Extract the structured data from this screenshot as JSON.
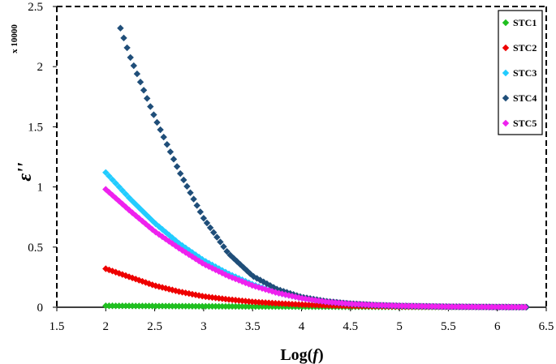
{
  "chart_data": {
    "type": "scatter",
    "xlabel_prefix": "Log(",
    "xlabel_var": "f",
    "xlabel_suffix": ")",
    "ylabel": "ε''",
    "multiplier_label": "x 10000",
    "xlim": [
      1.5,
      6.5
    ],
    "ylim": [
      0,
      2.5
    ],
    "x_ticks": [
      1.5,
      2,
      2.5,
      3,
      3.5,
      4,
      4.5,
      5,
      5.5,
      6,
      6.5
    ],
    "x_tick_labels": [
      "1.5",
      "2",
      "2.5",
      "3",
      "3.5",
      "4",
      "4.5",
      "5",
      "5.5",
      "6",
      "6.5"
    ],
    "y_ticks": [
      0,
      0.5,
      1,
      1.5,
      2,
      2.5
    ],
    "y_tick_labels": [
      "0",
      "0.5",
      "1",
      "1.5",
      "2",
      "2.5"
    ],
    "legend_position": "top-right",
    "marker": "diamond",
    "series": [
      {
        "name": "STC1",
        "color": "#1fbf1f",
        "x": [
          2.0,
          2.5,
          3.0,
          3.5,
          4.0,
          4.5,
          5.0,
          5.5,
          6.0,
          6.3
        ],
        "y": [
          0.012,
          0.01,
          0.008,
          0.006,
          0.005,
          0.004,
          0.003,
          0.002,
          0.002,
          0.001
        ]
      },
      {
        "name": "STC2",
        "color": "#ee0000",
        "x": [
          2.0,
          2.25,
          2.5,
          2.75,
          3.0,
          3.25,
          3.5,
          3.75,
          4.0,
          4.25,
          4.5,
          5.0,
          5.5,
          6.0,
          6.3
        ],
        "y": [
          0.32,
          0.25,
          0.18,
          0.13,
          0.09,
          0.065,
          0.045,
          0.032,
          0.022,
          0.015,
          0.011,
          0.006,
          0.004,
          0.002,
          0.001
        ]
      },
      {
        "name": "STC3",
        "color": "#22ccff",
        "x": [
          2.0,
          2.25,
          2.5,
          2.75,
          3.0,
          3.25,
          3.5,
          3.75,
          4.0,
          4.25,
          4.5,
          4.75,
          5.0,
          5.5,
          6.0,
          6.3
        ],
        "y": [
          1.12,
          0.9,
          0.7,
          0.53,
          0.39,
          0.28,
          0.19,
          0.12,
          0.075,
          0.045,
          0.028,
          0.018,
          0.012,
          0.005,
          0.002,
          0.001
        ]
      },
      {
        "name": "STC4",
        "color": "#1f4e79",
        "x": [
          2.15,
          2.25,
          2.5,
          2.75,
          3.0,
          3.25,
          3.5,
          3.75,
          4.0,
          4.25,
          4.5,
          4.75,
          5.0,
          5.5,
          6.0,
          6.3
        ],
        "y": [
          2.32,
          2.08,
          1.58,
          1.13,
          0.74,
          0.45,
          0.26,
          0.15,
          0.085,
          0.05,
          0.03,
          0.018,
          0.011,
          0.005,
          0.002,
          0.001
        ]
      },
      {
        "name": "STC5",
        "color": "#ee22ee",
        "x": [
          2.0,
          2.25,
          2.5,
          2.75,
          3.0,
          3.25,
          3.5,
          3.75,
          4.0,
          4.25,
          4.5,
          4.75,
          5.0,
          5.5,
          6.0,
          6.3
        ],
        "y": [
          0.98,
          0.8,
          0.63,
          0.49,
          0.36,
          0.26,
          0.18,
          0.12,
          0.075,
          0.045,
          0.028,
          0.018,
          0.012,
          0.005,
          0.002,
          0.001
        ]
      }
    ]
  }
}
